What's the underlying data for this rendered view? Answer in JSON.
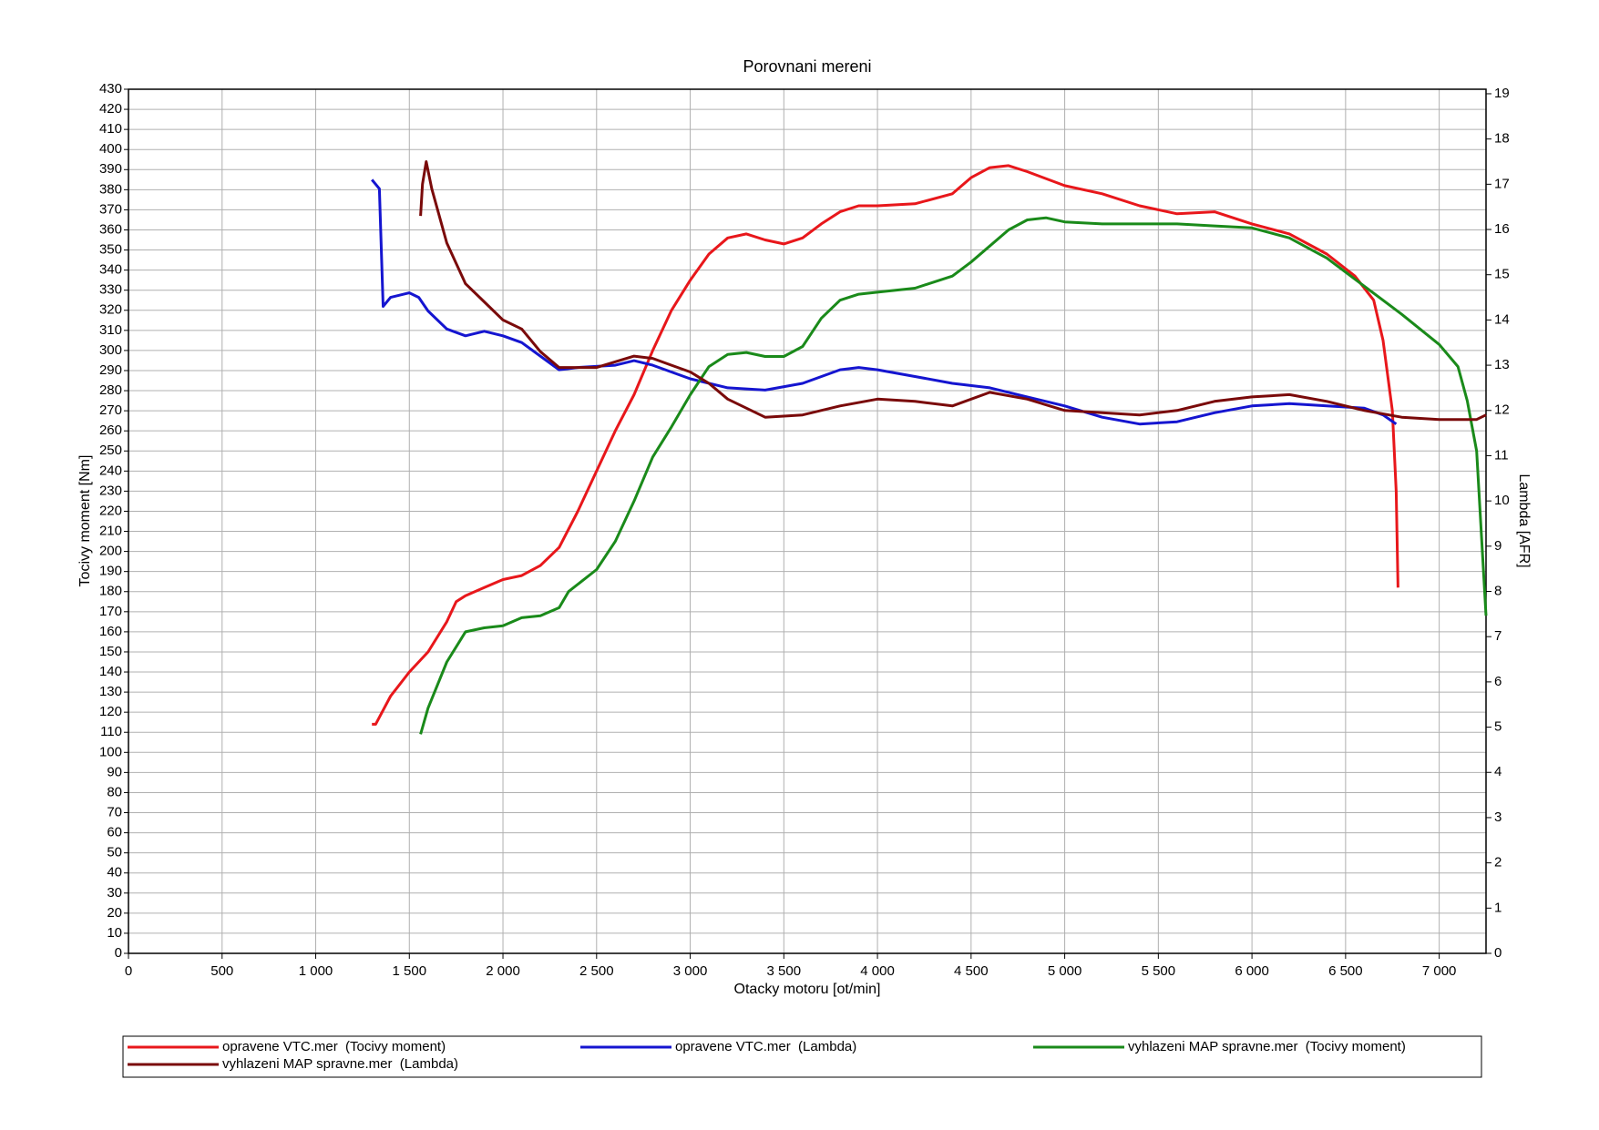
{
  "chart_data": {
    "type": "line",
    "title": "Porovnani mereni",
    "xlabel": "Otacky motoru [ot/min]",
    "ylabel": "Tocivy moment [Nm]",
    "y2label": "Lambda [AFR]",
    "grid": true,
    "legend": "bottom",
    "xlim": [
      0,
      7250
    ],
    "xticks": [
      0,
      500,
      {
        "value": 1000,
        "label": "1 000"
      },
      {
        "value": 1500,
        "label": "1 500"
      },
      {
        "value": 2000,
        "label": "2 000"
      },
      {
        "value": 2500,
        "label": "2 500"
      },
      {
        "value": 3000,
        "label": "3 000"
      },
      {
        "value": 3500,
        "label": "3 500"
      },
      {
        "value": 4000,
        "label": "4 000"
      },
      {
        "value": 4500,
        "label": "4 500"
      },
      {
        "value": 5000,
        "label": "5 000"
      },
      {
        "value": 5500,
        "label": "5 500"
      },
      {
        "value": 6000,
        "label": "6 000"
      },
      {
        "value": 6500,
        "label": "6 500"
      },
      {
        "value": 7000,
        "label": "7 000"
      }
    ],
    "ylim": [
      0,
      430
    ],
    "yticks": [
      0,
      10,
      20,
      30,
      40,
      50,
      60,
      70,
      80,
      90,
      100,
      110,
      120,
      130,
      140,
      150,
      160,
      170,
      180,
      190,
      200,
      210,
      220,
      230,
      240,
      250,
      260,
      270,
      280,
      290,
      300,
      310,
      320,
      330,
      340,
      350,
      360,
      370,
      380,
      390,
      400,
      410,
      420,
      430
    ],
    "y2lim": [
      0,
      19.1
    ],
    "y2ticks": [
      0,
      1,
      2,
      3,
      4,
      5,
      6,
      7,
      8,
      9,
      10,
      11,
      12,
      13,
      14,
      15,
      16,
      17,
      18,
      19
    ],
    "series": [
      {
        "name": "opravene VTC.mer  (Tocivy moment)",
        "color": "#e8171b",
        "x": [
          1300,
          1320,
          1400,
          1500,
          1600,
          1700,
          1750,
          1800,
          1900,
          2000,
          2100,
          2200,
          2300,
          2400,
          2500,
          2600,
          2700,
          2800,
          2900,
          3000,
          3100,
          3200,
          3300,
          3400,
          3500,
          3600,
          3700,
          3800,
          3900,
          4000,
          4200,
          4400,
          4500,
          4600,
          4700,
          4800,
          5000,
          5200,
          5400,
          5600,
          5800,
          6000,
          6200,
          6400,
          6550,
          6650,
          6700,
          6750,
          6770,
          6780
        ],
        "values": [
          114,
          114,
          128,
          140,
          150,
          165,
          175,
          178,
          182,
          186,
          188,
          193,
          202,
          220,
          240,
          260,
          278,
          300,
          320,
          335,
          348,
          356,
          358,
          355,
          353,
          356,
          363,
          369,
          372,
          372,
          373,
          378,
          386,
          391,
          392,
          389,
          382,
          378,
          372,
          368,
          369,
          363,
          358,
          348,
          337,
          325,
          305,
          270,
          230,
          182
        ]
      },
      {
        "name": "opravene VTC.mer  (Lambda)",
        "color": "#1515d0",
        "axis": "y2",
        "x": [
          1300,
          1320,
          1340,
          1360,
          1400,
          1500,
          1550,
          1600,
          1700,
          1800,
          1900,
          2000,
          2100,
          2200,
          2300,
          2400,
          2600,
          2700,
          2800,
          3000,
          3200,
          3400,
          3600,
          3800,
          3900,
          4000,
          4200,
          4400,
          4600,
          4800,
          5000,
          5200,
          5400,
          5600,
          5800,
          6000,
          6200,
          6400,
          6600,
          6700,
          6770
        ],
        "values": [
          17.1,
          17.0,
          16.9,
          14.3,
          14.5,
          14.6,
          14.5,
          14.2,
          13.8,
          13.65,
          13.75,
          13.65,
          13.5,
          13.2,
          12.9,
          12.95,
          13.0,
          13.1,
          13.0,
          12.7,
          12.5,
          12.45,
          12.6,
          12.9,
          12.95,
          12.9,
          12.75,
          12.6,
          12.5,
          12.3,
          12.1,
          11.85,
          11.7,
          11.75,
          11.95,
          12.1,
          12.15,
          12.1,
          12.05,
          11.9,
          11.7
        ]
      },
      {
        "name": "vyhlazeni MAP spravne.mer  (Tocivy moment)",
        "color": "#1a8a1a",
        "x": [
          1560,
          1600,
          1700,
          1800,
          1900,
          2000,
          2100,
          2200,
          2300,
          2350,
          2500,
          2600,
          2700,
          2800,
          2900,
          3000,
          3100,
          3200,
          3300,
          3400,
          3500,
          3600,
          3700,
          3800,
          3900,
          4000,
          4200,
          4400,
          4500,
          4700,
          4800,
          4900,
          5000,
          5200,
          5600,
          5800,
          6000,
          6200,
          6400,
          6600,
          6800,
          7000,
          7100,
          7150,
          7200,
          7250
        ],
        "values": [
          109,
          122,
          145,
          160,
          162,
          163,
          167,
          168,
          172,
          180,
          191,
          205,
          225,
          247,
          262,
          278,
          292,
          298,
          299,
          297,
          297,
          302,
          316,
          325,
          328,
          329,
          331,
          337,
          344,
          360,
          365,
          366,
          364,
          363,
          363,
          362,
          361,
          356,
          346,
          332,
          318,
          303,
          292,
          275,
          250,
          168
        ]
      },
      {
        "name": "vyhlazeni MAP spravne.mer  (Lambda)",
        "color": "#7a0a0a",
        "axis": "y2",
        "x": [
          1560,
          1570,
          1590,
          1620,
          1700,
          1800,
          1900,
          2000,
          2100,
          2200,
          2300,
          2500,
          2700,
          2800,
          2900,
          3000,
          3100,
          3200,
          3400,
          3600,
          3800,
          4000,
          4200,
          4400,
          4600,
          4800,
          5000,
          5400,
          5600,
          5800,
          6000,
          6200,
          6400,
          6600,
          6800,
          7000,
          7200,
          7250
        ],
        "values": [
          16.3,
          17.0,
          17.5,
          16.9,
          15.7,
          14.8,
          14.4,
          14.0,
          13.8,
          13.3,
          12.95,
          12.95,
          13.2,
          13.15,
          13.0,
          12.85,
          12.6,
          12.25,
          11.85,
          11.9,
          12.1,
          12.25,
          12.2,
          12.1,
          12.4,
          12.25,
          12.0,
          11.9,
          12.0,
          12.2,
          12.3,
          12.35,
          12.2,
          12.0,
          11.85,
          11.8,
          11.8,
          11.9
        ]
      }
    ]
  }
}
